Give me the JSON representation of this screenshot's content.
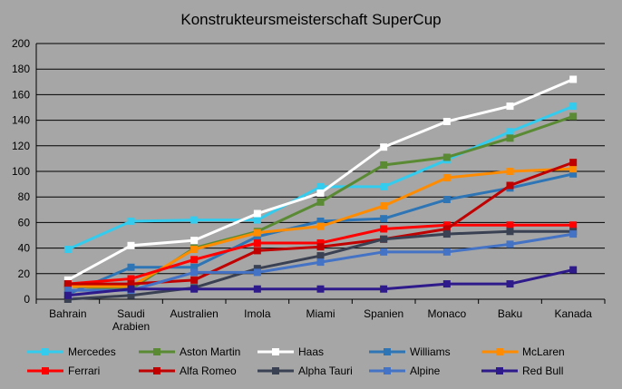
{
  "chart_data": {
    "type": "line",
    "title": "Konstrukteursmeisterschaft SuperCup",
    "xlabel": "",
    "ylabel": "",
    "categories": [
      "Bahrain",
      "Saudi Arabien",
      "Australien",
      "Imola",
      "Miami",
      "Spanien",
      "Monaco",
      "Baku",
      "Kanada"
    ],
    "category_lines": [
      [
        "Bahrain"
      ],
      [
        "Saudi",
        "Arabien"
      ],
      [
        "Australien"
      ],
      [
        "Imola"
      ],
      [
        "Miami"
      ],
      [
        "Spanien"
      ],
      [
        "Monaco"
      ],
      [
        "Baku"
      ],
      [
        "Kanada"
      ]
    ],
    "ylim": [
      0,
      200
    ],
    "yticks": [
      0,
      20,
      40,
      60,
      80,
      100,
      120,
      140,
      160,
      180,
      200
    ],
    "grid": true,
    "legend_position": "bottom",
    "series": [
      {
        "name": "Mercedes",
        "color": "#33ccee",
        "marker": "square",
        "values": [
          39,
          61,
          62,
          62,
          88,
          88,
          109,
          131,
          151
        ]
      },
      {
        "name": "Aston Martin",
        "color": "#5a8a34",
        "marker": "square",
        "values": [
          10,
          8,
          40,
          53,
          76,
          105,
          111,
          126,
          143
        ]
      },
      {
        "name": "Haas",
        "color": "#ffffff",
        "marker": "square",
        "values": [
          15,
          42,
          46,
          67,
          83,
          119,
          139,
          151,
          172
        ]
      },
      {
        "name": "Williams",
        "color": "#2e75b6",
        "marker": "square",
        "values": [
          4,
          25,
          25,
          49,
          61,
          63,
          78,
          87,
          98
        ]
      },
      {
        "name": "McLaren",
        "color": "#ff8c00",
        "marker": "square",
        "values": [
          10,
          10,
          39,
          52,
          57,
          73,
          95,
          100,
          102
        ]
      },
      {
        "name": "Ferrari",
        "color": "#ff0000",
        "marker": "square",
        "values": [
          12,
          16,
          31,
          44,
          44,
          55,
          58,
          58,
          58
        ]
      },
      {
        "name": "Alfa Romeo",
        "color": "#c00000",
        "marker": "square",
        "values": [
          12,
          12,
          15,
          38,
          41,
          47,
          55,
          89,
          107
        ]
      },
      {
        "name": "Alpha Tauri",
        "color": "#3a4152",
        "marker": "square",
        "values": [
          0,
          3,
          9,
          24,
          34,
          47,
          51,
          53,
          53
        ]
      },
      {
        "name": "Alpine",
        "color": "#4472c4",
        "marker": "square",
        "values": [
          7,
          7,
          21,
          21,
          29,
          37,
          37,
          43,
          51
        ]
      },
      {
        "name": "Red Bull",
        "color": "#2e1a8a",
        "marker": "square",
        "values": [
          3,
          8,
          8,
          8,
          8,
          8,
          12,
          12,
          23
        ]
      }
    ]
  }
}
